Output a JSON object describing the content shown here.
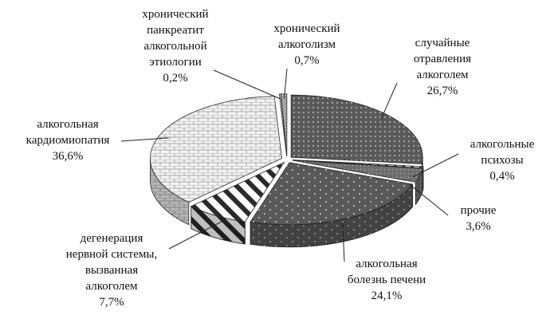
{
  "chart_data": {
    "type": "pie",
    "categories": [
      "случайные\nотравления\nалкоголем",
      "алкогольные\nпсихозы",
      "прочие",
      "алкогольная\nболезнь печени",
      "дегенерация\nнервной системы,\nвызванная\nалкоголем",
      "алкогольная\nкардиомиопатия",
      "хронический\nпанкреатит\nалкогольной\nэтиологии",
      "хронический\nалкоголизм"
    ],
    "values": [
      26.7,
      0.4,
      3.6,
      24.1,
      7.7,
      36.6,
      0.2,
      0.7
    ],
    "value_labels": [
      "26,7%",
      "0,4%",
      "3,6%",
      "24,1%",
      "7,7%",
      "36,6%",
      "0,2%",
      "0,7%"
    ],
    "colors": [
      "#5a5a5a",
      "#ffffff",
      "#6e6e6e",
      "#595959",
      "#ffffff",
      "#f2f2f2",
      "#d0d0d0",
      "#bfbfbf"
    ]
  }
}
